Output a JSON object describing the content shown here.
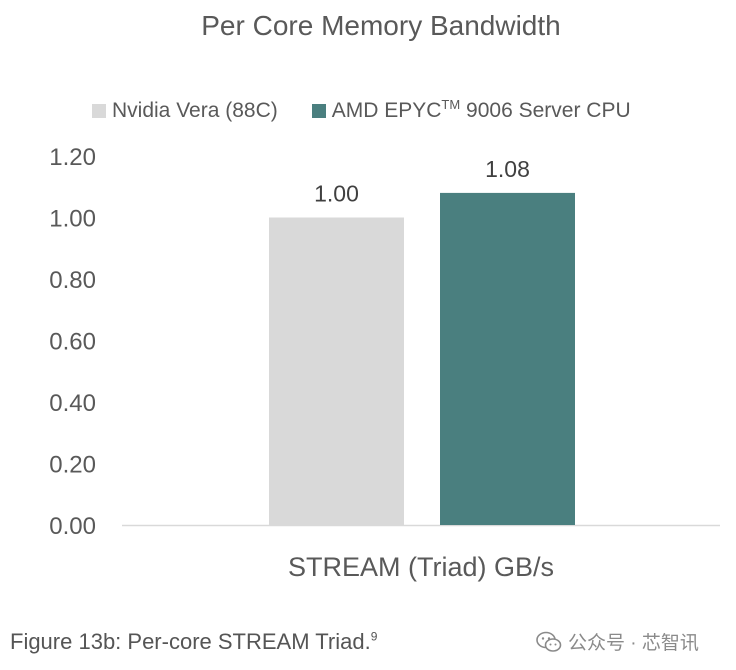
{
  "chart_data": {
    "type": "bar",
    "title": "Per Core Memory Bandwidth",
    "categories": [
      "STREAM (Triad) GB/s"
    ],
    "series": [
      {
        "name": "Nvidia Vera (88C)",
        "values": [
          1.0
        ],
        "label": "1.00",
        "color": "#d9d9d9"
      },
      {
        "name_main": "AMD EPYC",
        "name_sup": "TM",
        "name_rest": " 9006 Server CPU",
        "values": [
          1.08
        ],
        "label": "1.08",
        "color": "#4a7f7f"
      }
    ],
    "yticks": [
      "0.00",
      "0.20",
      "0.40",
      "0.60",
      "0.80",
      "1.00",
      "1.20"
    ],
    "ylim": [
      0,
      1.2
    ],
    "grid": false,
    "legend_position": "top"
  },
  "caption": {
    "text": "Figure 13b: Per-core STREAM Triad.",
    "sup": "9"
  },
  "watermark": {
    "text": "公众号 · 芯智讯",
    "icon": "wechat-icon"
  }
}
